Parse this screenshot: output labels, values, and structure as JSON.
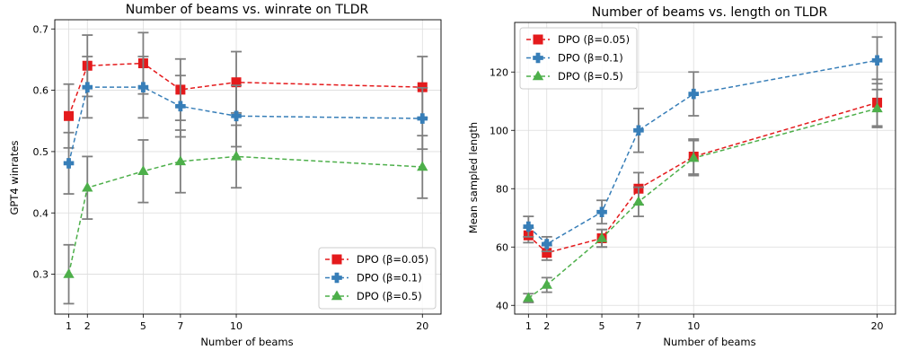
{
  "chart_data": [
    {
      "type": "line",
      "title": "Number of beams vs. winrate on TLDR",
      "xlabel": "Number of beams",
      "ylabel": "GPT4 winrates",
      "x": [
        1,
        2,
        5,
        7,
        10,
        20
      ],
      "xticks": [
        1,
        2,
        5,
        7,
        10,
        20
      ],
      "xlim": [
        0.25,
        21.0
      ],
      "yticks": [
        0.3,
        0.4,
        0.5,
        0.6,
        0.7
      ],
      "ylim": [
        0.235,
        0.715
      ],
      "grid": true,
      "legend_position": "bottom-right",
      "series": [
        {
          "name": "DPO (β=0.05)",
          "color": "#e41a1c",
          "marker": "square",
          "values": [
            0.558,
            0.64,
            0.644,
            0.601,
            0.613,
            0.605
          ],
          "error": [
            0.052,
            0.05,
            0.05,
            0.05,
            0.05,
            0.05
          ]
        },
        {
          "name": "DPO (β=0.1)",
          "color": "#377eb8",
          "marker": "plus",
          "values": [
            0.481,
            0.605,
            0.605,
            0.574,
            0.558,
            0.554
          ],
          "error": [
            0.05,
            0.05,
            0.05,
            0.05,
            0.05,
            0.05
          ]
        },
        {
          "name": "DPO (β=0.5)",
          "color": "#4daf4a",
          "marker": "triangle",
          "values": [
            0.3,
            0.441,
            0.468,
            0.484,
            0.492,
            0.475
          ],
          "error": [
            0.048,
            0.051,
            0.051,
            0.051,
            0.051,
            0.051
          ]
        }
      ]
    },
    {
      "type": "line",
      "title": "Number of beams vs. length on TLDR",
      "xlabel": "Number of beams",
      "ylabel": "Mean sampled length",
      "x": [
        1,
        2,
        5,
        7,
        10,
        20
      ],
      "xticks": [
        1,
        2,
        5,
        7,
        10,
        20
      ],
      "xlim": [
        0.25,
        21.0
      ],
      "yticks": [
        40,
        60,
        80,
        100,
        120
      ],
      "ylim": [
        37,
        137
      ],
      "grid": true,
      "legend_position": "top-left",
      "series": [
        {
          "name": "DPO (β=0.05)",
          "color": "#e41a1c",
          "marker": "square",
          "values": [
            64,
            58,
            63,
            80,
            91,
            109.5
          ],
          "error": [
            2.5,
            2.5,
            3.0,
            5.5,
            6.0,
            8.0
          ]
        },
        {
          "name": "DPO (β=0.1)",
          "color": "#377eb8",
          "marker": "plus",
          "values": [
            67,
            61,
            72,
            100,
            112.5,
            124
          ],
          "error": [
            3.5,
            2.5,
            4.0,
            7.5,
            7.5,
            8.0
          ]
        },
        {
          "name": "DPO (β=0.5)",
          "color": "#4daf4a",
          "marker": "triangle",
          "values": [
            42.5,
            47,
            63,
            75.5,
            90.5,
            107.5
          ],
          "error": [
            1.5,
            2.5,
            3.0,
            5.0,
            6.0,
            6.5
          ]
        }
      ]
    }
  ]
}
